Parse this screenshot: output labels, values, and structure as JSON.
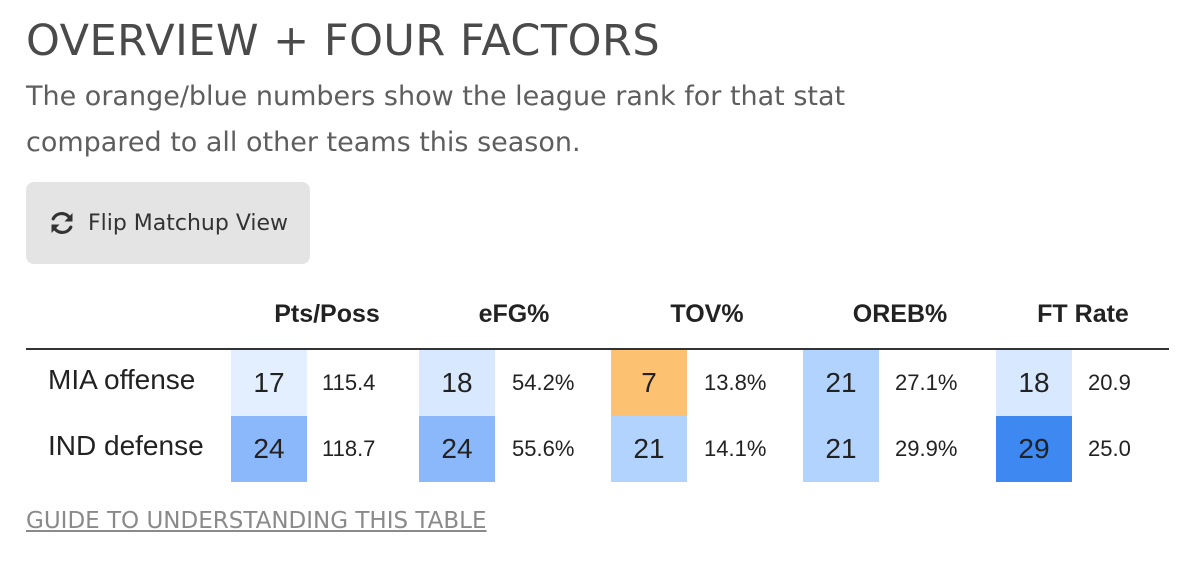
{
  "header": {
    "title": "OVERVIEW + FOUR FACTORS",
    "subtitle": "The orange/blue numbers show the league rank for that stat compared to all other teams this season."
  },
  "toolbar": {
    "flip_label": "Flip Matchup View",
    "flip_icon": "refresh-icon"
  },
  "table": {
    "columns": [
      "Pts/Poss",
      "eFG%",
      "TOV%",
      "OREB%",
      "FT Rate"
    ],
    "rows": [
      {
        "label": "MIA offense",
        "cells": [
          {
            "rank": "17",
            "value": "115.4",
            "color": "#e3efff"
          },
          {
            "rank": "18",
            "value": "54.2%",
            "color": "#d8e8ff"
          },
          {
            "rank": "7",
            "value": "13.8%",
            "color": "#fdc271"
          },
          {
            "rank": "21",
            "value": "27.1%",
            "color": "#b3d3ff"
          },
          {
            "rank": "18",
            "value": "20.9",
            "color": "#d8e8ff"
          }
        ]
      },
      {
        "label": "IND defense",
        "cells": [
          {
            "rank": "24",
            "value": "118.7",
            "color": "#8bb8fb"
          },
          {
            "rank": "24",
            "value": "55.6%",
            "color": "#8bb8fb"
          },
          {
            "rank": "21",
            "value": "14.1%",
            "color": "#b3d3ff"
          },
          {
            "rank": "21",
            "value": "29.9%",
            "color": "#b3d3ff"
          },
          {
            "rank": "29",
            "value": "25.0",
            "color": "#3d88f1"
          }
        ]
      }
    ]
  },
  "footer": {
    "guide_link": "GUIDE TO UNDERSTANDING THIS TABLE"
  }
}
